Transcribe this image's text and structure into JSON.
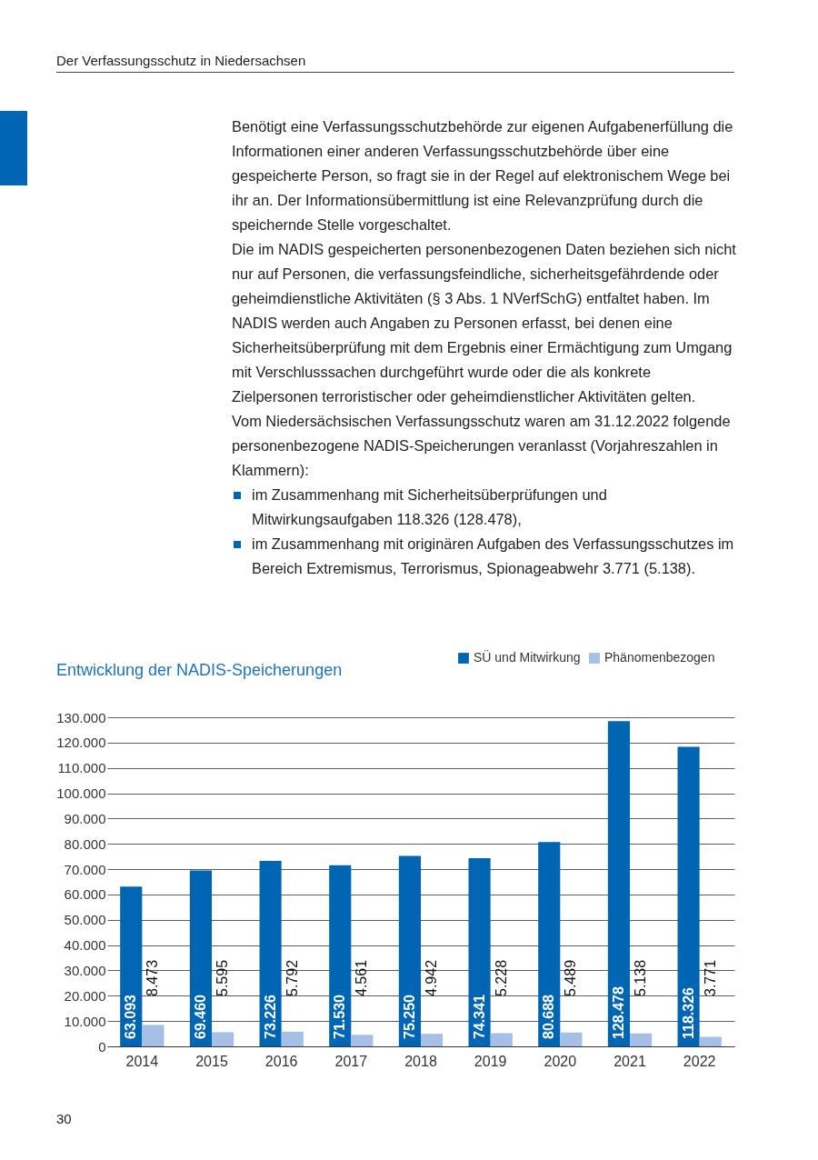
{
  "chart_data": {
    "type": "bar",
    "title": "Entwicklung der NADIS-Speicherungen",
    "categories": [
      "2014",
      "2015",
      "2016",
      "2017",
      "2018",
      "2019",
      "2020",
      "2021",
      "2022"
    ],
    "series": [
      {
        "name": "SÜ und Mitwirkung",
        "color": "#0066b3",
        "values": [
          63093,
          69460,
          73226,
          71530,
          75250,
          74341,
          80688,
          128478,
          118326
        ],
        "value_labels": [
          "63.093",
          "69.460",
          "73.226",
          "71.530",
          "75.250",
          "74.341",
          "80.688",
          "128.478",
          "118.326"
        ]
      },
      {
        "name": "Phänomenbezogen",
        "color": "#a5bfe6",
        "values": [
          8473,
          5595,
          5792,
          4561,
          4942,
          5228,
          5489,
          5138,
          3771
        ],
        "value_labels": [
          "8.473",
          "5.595",
          "5.792",
          "4.561",
          "4.942",
          "5.228",
          "5.489",
          "5.138",
          "3.771"
        ]
      }
    ],
    "ylim": [
      0,
      130000
    ],
    "yticks": [
      {
        "value": 0,
        "label": "0"
      },
      {
        "value": 10000,
        "label": "10.000"
      },
      {
        "value": 20000,
        "label": "20.000"
      },
      {
        "value": 30000,
        "label": "30.000"
      },
      {
        "value": 40000,
        "label": "40.000"
      },
      {
        "value": 50000,
        "label": "50.000"
      },
      {
        "value": 60000,
        "label": "60.000"
      },
      {
        "value": 70000,
        "label": "70.000"
      },
      {
        "value": 80000,
        "label": "80.000"
      },
      {
        "value": 90000,
        "label": "90.000"
      },
      {
        "value": 100000,
        "label": "100.000"
      },
      {
        "value": 110000,
        "label": "110.000"
      },
      {
        "value": 120000,
        "label": "120.000"
      },
      {
        "value": 130000,
        "label": "130.000"
      }
    ],
    "grid": "y",
    "legend": "top right",
    "annotations": [
      "Der Verfassungsschutz in Niedersachsen",
      "Benötigt eine Verfassungsschutzbehörde zur eigenen Aufgabenerfüllung die Informationen einer anderen Verfassungsschutzbehörde über eine gespeicherte Person, so fragt sie in der Regel auf elektronischem Wege bei ihr an. Der Informationsübermittlung ist eine Relevanzprüfung durch die speichernde Stelle vorgeschaltet.",
      "Die im NADIS gespeicherten personenbezogenen Daten beziehen sich nicht nur auf Personen, die verfassungsfeindliche, sicherheitsgefährdende oder geheimdienstliche Aktivitäten (§ 3 Abs. 1 NVerfSchG) entfaltet haben. Im NADIS werden auch Angaben zu Personen erfasst, bei denen eine Sicherheitsüberprüfung mit dem Ergebnis einer Ermächtigung zum Umgang mit Verschlusssachen durchgeführt wurde oder die als konkrete Zielpersonen terroristischer oder geheimdienstlicher Aktivitäten gelten.",
      "Vom Niedersächsischen Verfassungsschutz waren am 31.12.2022 folgende personenbezogene NADIS-Speicherungen veranlasst (Vorjahreszahlen in Klammern):",
      "im Zusammenhang mit Sicherheitsüberprüfungen und Mitwirkungsaufgaben 118.326 (128.478),",
      "im Zusammenhang mit originären Aufgaben des Verfassungsschutzes im Bereich Extremismus, Terrorismus, Spionageabwehr 3.771 (5.138).",
      "30"
    ]
  }
}
